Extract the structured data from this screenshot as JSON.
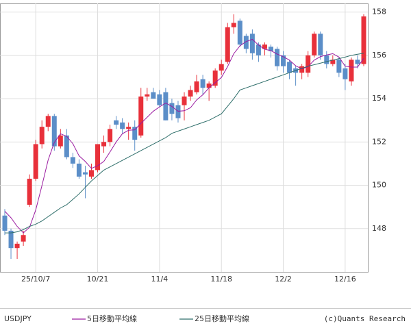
{
  "chart_data": {
    "type": "candlestick",
    "symbol": "USDJPY",
    "credit": "(c)Quants Research",
    "categories": [
      null,
      null,
      null,
      null,
      null,
      "25/10/7",
      null,
      null,
      null,
      null,
      null,
      null,
      null,
      null,
      null,
      "10/21",
      null,
      null,
      null,
      null,
      null,
      null,
      null,
      null,
      null,
      "11/4",
      null,
      null,
      null,
      null,
      null,
      null,
      null,
      null,
      null,
      "11/18",
      null,
      null,
      null,
      null,
      null,
      null,
      null,
      null,
      null,
      "12/2",
      null,
      null,
      null,
      null,
      null,
      null,
      null,
      null,
      null,
      "12/16",
      null,
      null,
      null
    ],
    "open": [
      148.6,
      147.9,
      147.1,
      147.4,
      149.1,
      150.3,
      151.9,
      152.7,
      153.2,
      151.8,
      152.3,
      151.3,
      151.0,
      150.6,
      150.4,
      150.7,
      151.8,
      152.0,
      153.0,
      152.9,
      152.6,
      152.7,
      152.3,
      154.1,
      154.3,
      154.2,
      154.3,
      153.8,
      153.7,
      153.7,
      154.1,
      154.3,
      154.9,
      154.5,
      154.6,
      155.3,
      155.7,
      157.3,
      157.6,
      156.9,
      157.0,
      156.5,
      156.3,
      156.4,
      156.3,
      156.0,
      155.7,
      155.4,
      155.2,
      155.2,
      156.0,
      157.0,
      156.0,
      155.6,
      155.8,
      155.4,
      154.8,
      155.8,
      155.6
    ],
    "high": [
      148.9,
      148.0,
      147.4,
      147.9,
      150.5,
      152.1,
      153.0,
      153.3,
      153.3,
      152.6,
      152.6,
      151.5,
      151.2,
      150.9,
      151.0,
      151.9,
      152.3,
      152.8,
      153.2,
      153.1,
      152.9,
      153.0,
      154.5,
      154.5,
      154.5,
      154.4,
      154.5,
      154.0,
      153.9,
      154.3,
      154.6,
      155.1,
      155.1,
      154.8,
      155.4,
      155.8,
      157.5,
      157.9,
      157.7,
      157.0,
      157.2,
      156.6,
      156.6,
      156.5,
      156.4,
      156.2,
      155.8,
      155.5,
      155.6,
      156.2,
      157.1,
      157.1,
      156.2,
      156.0,
      155.9,
      155.6,
      155.9,
      156.0,
      157.9
    ],
    "low": [
      147.7,
      146.6,
      146.6,
      147.2,
      149.0,
      150.2,
      151.7,
      152.5,
      151.6,
      151.7,
      151.2,
      150.8,
      150.3,
      149.4,
      150.3,
      150.6,
      151.5,
      151.8,
      152.6,
      152.4,
      152.1,
      151.6,
      152.2,
      153.9,
      154.0,
      153.6,
      153.0,
      153.0,
      152.9,
      153.0,
      153.9,
      154.2,
      154.2,
      153.9,
      154.5,
      155.1,
      155.6,
      157.0,
      156.4,
      156.1,
      155.8,
      155.7,
      156.0,
      155.9,
      155.3,
      155.2,
      154.9,
      154.6,
      154.9,
      155.0,
      155.9,
      155.8,
      155.4,
      155.5,
      155.0,
      154.4,
      154.6,
      155.4,
      155.5
    ],
    "close": [
      147.9,
      147.1,
      147.3,
      147.7,
      150.3,
      151.9,
      152.7,
      153.2,
      151.8,
      152.3,
      151.3,
      151.0,
      150.4,
      150.5,
      150.7,
      151.9,
      152.0,
      152.6,
      152.8,
      152.6,
      152.7,
      152.1,
      154.1,
      154.2,
      154.0,
      153.7,
      153.0,
      153.3,
      153.1,
      154.1,
      154.4,
      154.8,
      154.5,
      154.7,
      155.3,
      155.6,
      157.3,
      157.5,
      156.5,
      156.3,
      156.1,
      156.0,
      156.5,
      156.2,
      155.5,
      155.5,
      155.2,
      155.2,
      155.5,
      156.0,
      157.0,
      156.0,
      155.6,
      155.8,
      155.2,
      154.9,
      155.8,
      155.6,
      157.8
    ],
    "up_color": "#e8303a",
    "down_color": "#5b8ec8",
    "moving_averages": [
      {
        "name": "5日移動平均線",
        "color": "#9a1aa0",
        "values": [
          148.8,
          148.5,
          148.1,
          147.8,
          148.06,
          148.86,
          149.98,
          151.16,
          151.98,
          152.38,
          152.26,
          151.92,
          151.36,
          151.1,
          150.78,
          150.9,
          151.1,
          151.54,
          152.0,
          152.38,
          152.54,
          152.56,
          152.86,
          153.14,
          153.42,
          153.62,
          153.8,
          153.64,
          153.42,
          153.44,
          153.58,
          153.94,
          154.18,
          154.5,
          154.74,
          154.98,
          155.48,
          156.08,
          156.44,
          156.64,
          156.74,
          156.48,
          156.28,
          156.22,
          156.06,
          155.94,
          155.78,
          155.52,
          155.38,
          155.48,
          155.78,
          155.94,
          156.02,
          156.08,
          155.92,
          155.5,
          155.46,
          155.46,
          155.86
        ]
      },
      {
        "name": "25日移動平均線",
        "color": "#2e6e6a",
        "values": [
          147.8,
          147.8,
          147.85,
          147.95,
          148.1,
          148.2,
          148.35,
          148.55,
          148.75,
          148.95,
          149.1,
          149.35,
          149.6,
          149.9,
          150.2,
          150.45,
          150.7,
          150.85,
          151.0,
          151.15,
          151.3,
          151.45,
          151.6,
          151.75,
          151.9,
          152.05,
          152.2,
          152.4,
          152.5,
          152.6,
          152.7,
          152.8,
          152.9,
          153.0,
          153.15,
          153.3,
          153.65,
          154.0,
          154.4,
          154.5,
          154.6,
          154.7,
          154.8,
          154.9,
          155.0,
          155.1,
          155.2,
          155.3,
          155.4,
          155.5,
          155.57,
          155.64,
          155.71,
          155.78,
          155.85,
          155.92,
          156.0,
          156.05,
          156.1
        ]
      }
    ],
    "ylim": [
      146.0,
      158.4
    ],
    "yticks": [
      148,
      150,
      152,
      154,
      156,
      158
    ],
    "grid": true
  }
}
